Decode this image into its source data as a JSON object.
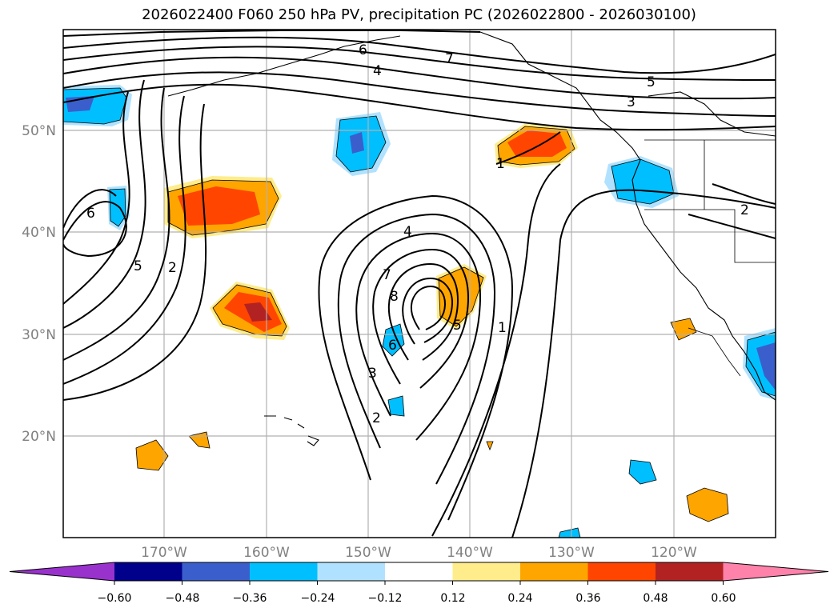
{
  "title": "2026022400 F060 250 hPa PV, precipitation PC (2026022800 - 2026030100)",
  "lat_labels": [
    "50°N",
    "40°N",
    "30°N",
    "20°N"
  ],
  "lon_labels": [
    "170°W",
    "160°W",
    "150°W",
    "140°W",
    "130°W",
    "120°W"
  ],
  "colorbar": {
    "ticks": [
      "−0.60",
      "−0.48",
      "−0.36",
      "−0.24",
      "−0.12",
      "0.12",
      "0.24",
      "0.36",
      "0.48",
      "0.60"
    ],
    "colors": [
      "#9932cc",
      "#00008b",
      "#3a5fcd",
      "#00bfff",
      "#b0e2ff",
      "#ffffff",
      "#ffec8b",
      "#ffa500",
      "#ff4500",
      "#b22222",
      "#ff82ab"
    ]
  },
  "contour_labels": [
    "1",
    "2",
    "2",
    "3",
    "3",
    "4",
    "4",
    "5",
    "5",
    "5",
    "6",
    "6",
    "6",
    "7",
    "7",
    "8",
    "1",
    "2"
  ]
}
